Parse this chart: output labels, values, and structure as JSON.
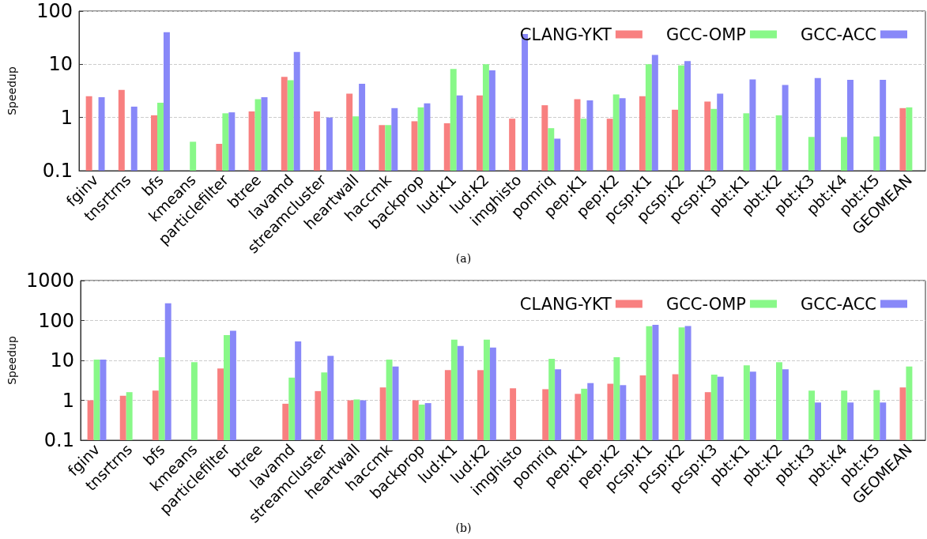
{
  "chart_data": [
    {
      "type": "bar",
      "ylabel": "Speedup",
      "annotations": [
        "(a)"
      ],
      "log": true,
      "ylim": [
        0.1,
        100
      ],
      "yticks": [
        0.1,
        1,
        10,
        100
      ],
      "grid": "y",
      "legend": "top right",
      "categories": [
        "fginv",
        "tnsrtrns",
        "bfs",
        "kmeans",
        "particlefilter",
        "btree",
        "lavamd",
        "streamcluster",
        "heartwall",
        "haccmk",
        "backprop",
        "lud:K1",
        "lud:K2",
        "imghisto",
        "pomriq",
        "pep:K1",
        "pep:K2",
        "pcsp:K1",
        "pcsp:K2",
        "pcsp:K3",
        "pbt:K1",
        "pbt:K2",
        "pbt:K3",
        "pbt:K4",
        "pbt:K5",
        "GEOMEAN"
      ],
      "series": [
        {
          "name": "CLANG-YKT",
          "color": "#f88080",
          "values": [
            2.5,
            3.3,
            1.1,
            null,
            0.32,
            1.3,
            5.8,
            1.3,
            2.8,
            0.72,
            0.85,
            0.78,
            2.6,
            0.95,
            1.7,
            2.2,
            0.95,
            2.5,
            1.4,
            2.0,
            null,
            null,
            null,
            null,
            null,
            1.5
          ]
        },
        {
          "name": "GCC-OMP",
          "color": "#88f888",
          "values": [
            null,
            null,
            1.9,
            0.35,
            1.2,
            2.2,
            5,
            null,
            1.05,
            0.72,
            1.55,
            8.2,
            10,
            null,
            0.63,
            0.95,
            2.7,
            10,
            9.5,
            1.45,
            1.2,
            1.1,
            0.43,
            0.43,
            0.44,
            1.55
          ]
        },
        {
          "name": "GCC-ACC",
          "color": "#8888f8",
          "values": [
            2.4,
            1.6,
            40,
            null,
            1.25,
            2.4,
            17,
            1.0,
            4.3,
            1.5,
            1.85,
            2.6,
            7.7,
            37,
            0.4,
            2.1,
            2.3,
            15,
            11.5,
            2.8,
            5.2,
            4.1,
            5.5,
            5.1,
            5.1,
            null
          ]
        }
      ]
    },
    {
      "type": "bar",
      "ylabel": "Speedup",
      "annotations": [
        "(b)"
      ],
      "log": true,
      "ylim": [
        0.1,
        1000
      ],
      "yticks": [
        0.1,
        1,
        10,
        100,
        1000
      ],
      "grid": "y",
      "legend": "top right",
      "categories": [
        "fginv",
        "tnsrtrns",
        "bfs",
        "kmeans",
        "particlefilter",
        "btree",
        "lavamd",
        "streamcluster",
        "heartwall",
        "haccmk",
        "backprop",
        "lud:K1",
        "lud:K2",
        "imghisto",
        "pomriq",
        "pep:K1",
        "pep:K2",
        "pcsp:K1",
        "pcsp:K2",
        "pcsp:K3",
        "pbt:K1",
        "pbt:K2",
        "pbt:K3",
        "pbt:K4",
        "pbt:K5",
        "GEOMEAN"
      ],
      "series": [
        {
          "name": "CLANG-YKT",
          "color": "#f88080",
          "values": [
            1.0,
            1.3,
            1.75,
            null,
            6.3,
            null,
            0.82,
            1.7,
            1.0,
            2.1,
            1.0,
            5.7,
            5.7,
            2.0,
            1.9,
            1.45,
            2.6,
            4.2,
            4.5,
            1.6,
            null,
            null,
            null,
            null,
            null,
            2.1
          ]
        },
        {
          "name": "GCC-OMP",
          "color": "#88f888",
          "values": [
            10.5,
            1.6,
            12,
            9,
            43,
            null,
            3.7,
            5,
            1.05,
            10.5,
            0.78,
            33,
            33,
            null,
            11,
            1.95,
            12,
            72,
            67,
            4.4,
            7.5,
            9,
            1.75,
            1.75,
            1.8,
            7
          ]
        },
        {
          "name": "GCC-ACC",
          "color": "#8888f8",
          "values": [
            10.5,
            null,
            270,
            null,
            55,
            null,
            30,
            13,
            1.0,
            7,
            0.85,
            23,
            21,
            null,
            6,
            2.7,
            2.4,
            78,
            73,
            3.9,
            5.2,
            6,
            0.88,
            0.88,
            0.88,
            null
          ]
        }
      ]
    }
  ]
}
